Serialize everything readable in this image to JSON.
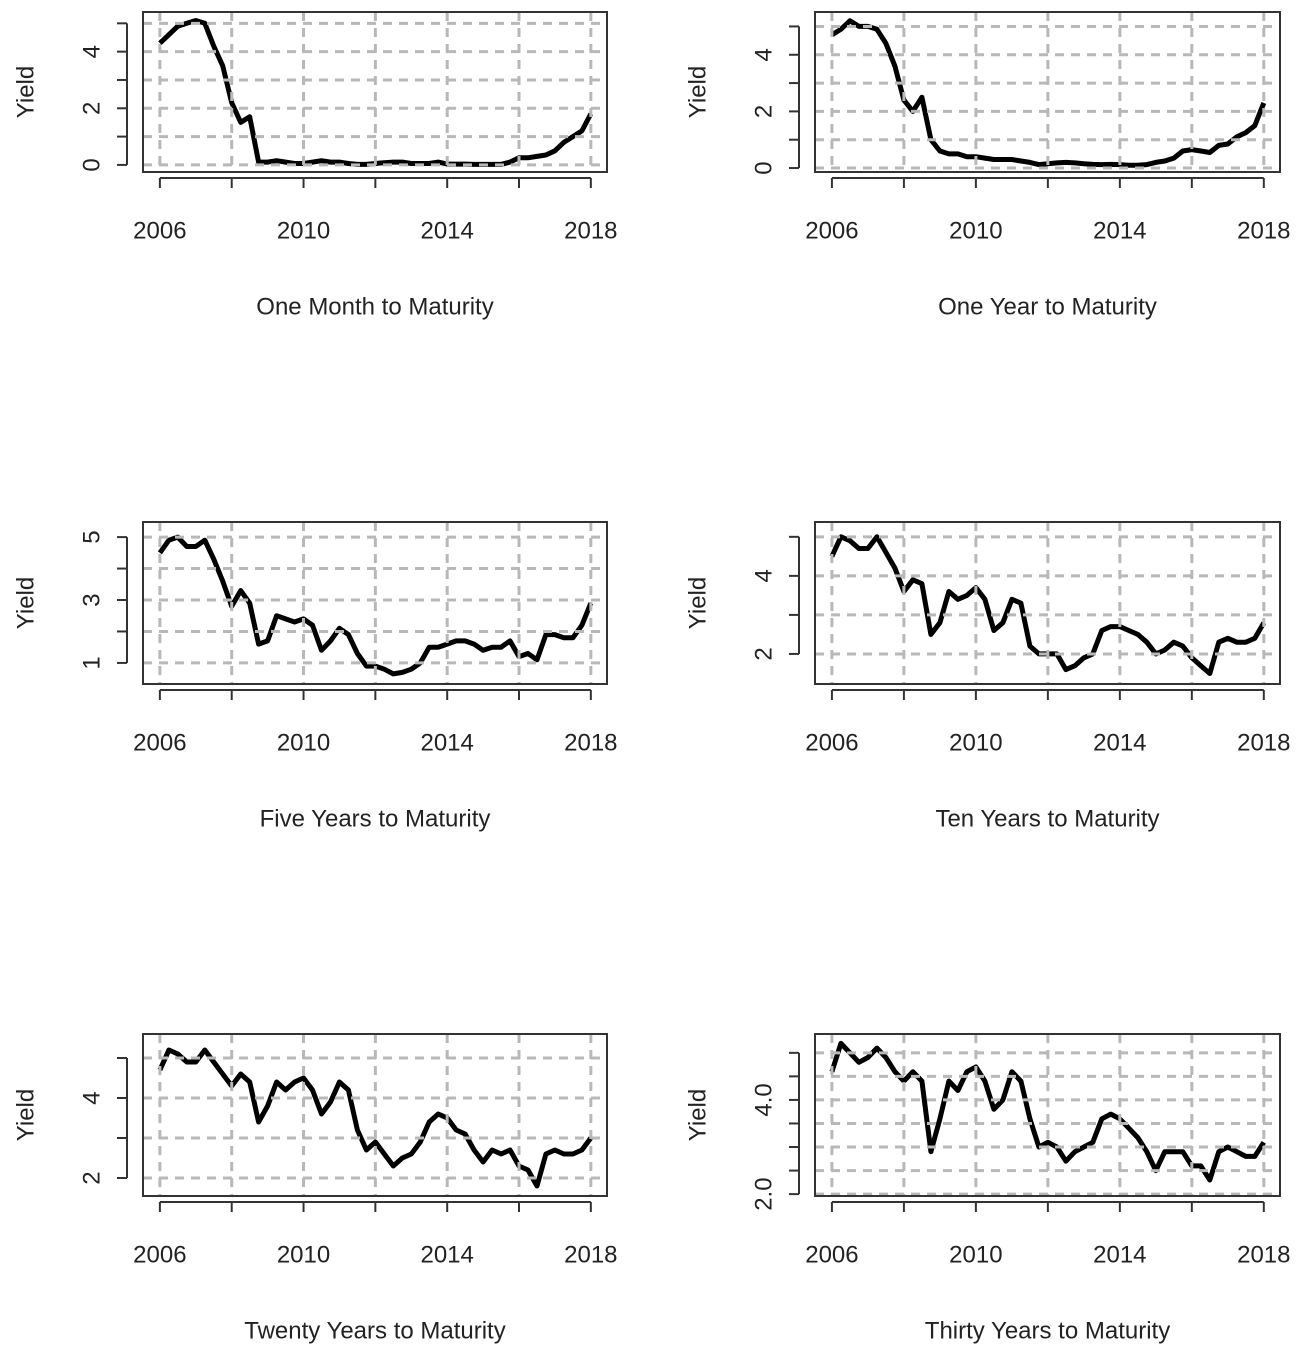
{
  "chart_data": [
    {
      "type": "line",
      "xlabel": "One Month to Maturity",
      "ylabel": "Yield",
      "color": "#000000",
      "grid": true,
      "x": [
        2006,
        2006.25,
        2006.5,
        2006.75,
        2007,
        2007.25,
        2007.5,
        2007.75,
        2008,
        2008.25,
        2008.5,
        2008.75,
        2009,
        2009.25,
        2009.5,
        2009.75,
        2010,
        2010.25,
        2010.5,
        2010.75,
        2011,
        2011.25,
        2011.5,
        2011.75,
        2012,
        2012.25,
        2012.5,
        2012.75,
        2013,
        2013.25,
        2013.5,
        2013.75,
        2014,
        2014.25,
        2014.5,
        2014.75,
        2015,
        2015.25,
        2015.5,
        2015.75,
        2016,
        2016.25,
        2016.5,
        2016.75,
        2017,
        2017.25,
        2017.5,
        2017.75,
        2018
      ],
      "values": [
        4.3,
        4.6,
        4.9,
        5.0,
        5.1,
        5.0,
        4.2,
        3.5,
        2.2,
        1.5,
        1.7,
        0.1,
        0.1,
        0.15,
        0.1,
        0.05,
        0.05,
        0.1,
        0.15,
        0.1,
        0.1,
        0.05,
        0.02,
        0.02,
        0.05,
        0.08,
        0.1,
        0.1,
        0.05,
        0.05,
        0.05,
        0.1,
        0.03,
        0.03,
        0.03,
        0.02,
        0.02,
        0.02,
        0.02,
        0.1,
        0.25,
        0.25,
        0.3,
        0.35,
        0.5,
        0.8,
        1.0,
        1.2,
        1.8
      ],
      "xlim": [
        2005.53,
        2018.45
      ],
      "xticks": [
        2006,
        2010,
        2014,
        2018
      ],
      "xticks_minor": [
        2008,
        2012,
        2016
      ],
      "ylim": [
        -0.25,
        5.4
      ],
      "yticks": [
        0,
        2,
        4
      ],
      "yticks_minor": [
        1,
        3,
        5
      ]
    },
    {
      "type": "line",
      "xlabel": "One Year to Maturity",
      "ylabel": "Yield",
      "color": "#000000",
      "grid": true,
      "x": [
        2006,
        2006.25,
        2006.5,
        2006.75,
        2007,
        2007.25,
        2007.5,
        2007.75,
        2008,
        2008.25,
        2008.5,
        2008.75,
        2009,
        2009.25,
        2009.5,
        2009.75,
        2010,
        2010.25,
        2010.5,
        2010.75,
        2011,
        2011.25,
        2011.5,
        2011.75,
        2012,
        2012.25,
        2012.5,
        2012.75,
        2013,
        2013.25,
        2013.5,
        2013.75,
        2014,
        2014.25,
        2014.5,
        2014.75,
        2015,
        2015.25,
        2015.5,
        2015.75,
        2016,
        2016.25,
        2016.5,
        2016.75,
        2017,
        2017.25,
        2017.5,
        2017.75,
        2018
      ],
      "values": [
        4.7,
        4.9,
        5.2,
        5.0,
        5.0,
        4.9,
        4.4,
        3.6,
        2.4,
        2.0,
        2.5,
        1.0,
        0.6,
        0.5,
        0.5,
        0.4,
        0.4,
        0.35,
        0.3,
        0.3,
        0.3,
        0.25,
        0.2,
        0.12,
        0.15,
        0.18,
        0.2,
        0.18,
        0.15,
        0.13,
        0.12,
        0.13,
        0.12,
        0.1,
        0.1,
        0.12,
        0.2,
        0.25,
        0.35,
        0.6,
        0.65,
        0.6,
        0.55,
        0.8,
        0.85,
        1.1,
        1.25,
        1.5,
        2.3
      ],
      "xlim": [
        2005.53,
        2018.45
      ],
      "xticks": [
        2006,
        2010,
        2014,
        2018
      ],
      "xticks_minor": [
        2008,
        2012,
        2016
      ],
      "ylim": [
        -0.14,
        5.51
      ],
      "yticks": [
        0,
        2,
        4
      ],
      "yticks_minor": [
        1,
        3,
        5
      ]
    },
    {
      "type": "line",
      "xlabel": "Five Years to Maturity",
      "ylabel": "Yield",
      "color": "#000000",
      "grid": true,
      "x": [
        2006,
        2006.25,
        2006.5,
        2006.75,
        2007,
        2007.25,
        2007.5,
        2007.75,
        2008,
        2008.25,
        2008.5,
        2008.75,
        2009,
        2009.25,
        2009.5,
        2009.75,
        2010,
        2010.25,
        2010.5,
        2010.75,
        2011,
        2011.25,
        2011.5,
        2011.75,
        2012,
        2012.25,
        2012.5,
        2012.75,
        2013,
        2013.25,
        2013.5,
        2013.75,
        2014,
        2014.25,
        2014.5,
        2014.75,
        2015,
        2015.25,
        2015.5,
        2015.75,
        2016,
        2016.25,
        2016.5,
        2016.75,
        2017,
        2017.25,
        2017.5,
        2017.75,
        2018
      ],
      "values": [
        4.5,
        4.9,
        5.0,
        4.7,
        4.7,
        4.9,
        4.3,
        3.6,
        2.8,
        3.3,
        2.9,
        1.6,
        1.7,
        2.5,
        2.4,
        2.3,
        2.4,
        2.2,
        1.4,
        1.7,
        2.1,
        1.9,
        1.3,
        0.9,
        0.9,
        0.8,
        0.65,
        0.7,
        0.8,
        1.0,
        1.5,
        1.5,
        1.6,
        1.7,
        1.7,
        1.6,
        1.4,
        1.5,
        1.5,
        1.7,
        1.2,
        1.3,
        1.1,
        1.9,
        1.9,
        1.8,
        1.8,
        2.2,
        2.9
      ],
      "xlim": [
        2005.53,
        2018.45
      ],
      "xticks": [
        2006,
        2010,
        2014,
        2018
      ],
      "xticks_minor": [
        2008,
        2012,
        2016
      ],
      "ylim": [
        0.33,
        5.48
      ],
      "yticks": [
        1,
        3,
        5
      ],
      "yticks_minor": [
        2,
        4
      ]
    },
    {
      "type": "line",
      "xlabel": "Ten Years to Maturity",
      "ylabel": "Yield",
      "color": "#000000",
      "grid": true,
      "x": [
        2006,
        2006.25,
        2006.5,
        2006.75,
        2007,
        2007.25,
        2007.5,
        2007.75,
        2008,
        2008.25,
        2008.5,
        2008.75,
        2009,
        2009.25,
        2009.5,
        2009.75,
        2010,
        2010.25,
        2010.5,
        2010.75,
        2011,
        2011.25,
        2011.5,
        2011.75,
        2012,
        2012.25,
        2012.5,
        2012.75,
        2013,
        2013.25,
        2013.5,
        2013.75,
        2014,
        2014.25,
        2014.5,
        2014.75,
        2015,
        2015.25,
        2015.5,
        2015.75,
        2016,
        2016.25,
        2016.5,
        2016.75,
        2017,
        2017.25,
        2017.5,
        2017.75,
        2018
      ],
      "values": [
        4.5,
        5.0,
        4.9,
        4.7,
        4.7,
        5.0,
        4.6,
        4.2,
        3.6,
        3.9,
        3.8,
        2.5,
        2.8,
        3.6,
        3.4,
        3.5,
        3.7,
        3.4,
        2.6,
        2.8,
        3.4,
        3.3,
        2.2,
        2.0,
        2.0,
        2.0,
        1.6,
        1.7,
        1.9,
        2.0,
        2.6,
        2.7,
        2.7,
        2.6,
        2.5,
        2.3,
        2.0,
        2.1,
        2.3,
        2.2,
        1.9,
        1.7,
        1.5,
        2.3,
        2.4,
        2.3,
        2.3,
        2.4,
        2.8
      ],
      "xlim": [
        2005.53,
        2018.45
      ],
      "xticks": [
        2006,
        2010,
        2014,
        2018
      ],
      "xticks_minor": [
        2008,
        2012,
        2016
      ],
      "ylim": [
        1.23,
        5.38
      ],
      "yticks": [
        2,
        4
      ],
      "yticks_minor": [
        3,
        5
      ]
    },
    {
      "type": "line",
      "xlabel": "Twenty Years to Maturity",
      "ylabel": "Yield",
      "color": "#000000",
      "grid": true,
      "x": [
        2006,
        2006.25,
        2006.5,
        2006.75,
        2007,
        2007.25,
        2007.5,
        2007.75,
        2008,
        2008.25,
        2008.5,
        2008.75,
        2009,
        2009.25,
        2009.5,
        2009.75,
        2010,
        2010.25,
        2010.5,
        2010.75,
        2011,
        2011.25,
        2011.5,
        2011.75,
        2012,
        2012.25,
        2012.5,
        2012.75,
        2013,
        2013.25,
        2013.5,
        2013.75,
        2014,
        2014.25,
        2014.5,
        2014.75,
        2015,
        2015.25,
        2015.5,
        2015.75,
        2016,
        2016.25,
        2016.5,
        2016.75,
        2017,
        2017.25,
        2017.5,
        2017.75,
        2018
      ],
      "values": [
        4.7,
        5.2,
        5.1,
        4.9,
        4.9,
        5.2,
        4.9,
        4.6,
        4.3,
        4.6,
        4.4,
        3.4,
        3.8,
        4.4,
        4.2,
        4.4,
        4.5,
        4.2,
        3.6,
        3.9,
        4.4,
        4.2,
        3.2,
        2.7,
        2.9,
        2.6,
        2.3,
        2.5,
        2.6,
        2.9,
        3.4,
        3.6,
        3.5,
        3.2,
        3.1,
        2.7,
        2.4,
        2.7,
        2.6,
        2.7,
        2.3,
        2.2,
        1.8,
        2.6,
        2.7,
        2.6,
        2.6,
        2.7,
        3.0
      ],
      "xlim": [
        2005.53,
        2018.45
      ],
      "xticks": [
        2006,
        2010,
        2014,
        2018
      ],
      "xticks_minor": [
        2008,
        2012,
        2016
      ],
      "ylim": [
        1.55,
        5.6
      ],
      "yticks": [
        2,
        4
      ],
      "yticks_minor": [
        3,
        5
      ]
    },
    {
      "type": "line",
      "xlabel": "Thirty Years to Maturity",
      "ylabel": "Yield",
      "color": "#000000",
      "grid": true,
      "x": [
        2006,
        2006.25,
        2006.5,
        2006.75,
        2007,
        2007.25,
        2007.5,
        2007.75,
        2008,
        2008.25,
        2008.5,
        2008.75,
        2009,
        2009.25,
        2009.5,
        2009.75,
        2010,
        2010.25,
        2010.5,
        2010.75,
        2011,
        2011.25,
        2011.5,
        2011.75,
        2012,
        2012.25,
        2012.5,
        2012.75,
        2013,
        2013.25,
        2013.5,
        2013.75,
        2014,
        2014.25,
        2014.5,
        2014.75,
        2015,
        2015.25,
        2015.5,
        2015.75,
        2016,
        2016.25,
        2016.5,
        2016.75,
        2017,
        2017.25,
        2017.5,
        2017.75,
        2018
      ],
      "values": [
        4.6,
        5.2,
        5.0,
        4.8,
        4.9,
        5.1,
        4.9,
        4.6,
        4.4,
        4.6,
        4.4,
        2.9,
        3.6,
        4.4,
        4.2,
        4.6,
        4.7,
        4.4,
        3.8,
        4.0,
        4.6,
        4.4,
        3.6,
        3.0,
        3.1,
        3.0,
        2.7,
        2.9,
        3.0,
        3.1,
        3.6,
        3.7,
        3.6,
        3.4,
        3.2,
        2.9,
        2.5,
        2.9,
        2.9,
        2.9,
        2.6,
        2.6,
        2.3,
        2.9,
        3.0,
        2.9,
        2.8,
        2.8,
        3.1
      ],
      "xlim": [
        2005.53,
        2018.45
      ],
      "xticks": [
        2006,
        2010,
        2014,
        2018
      ],
      "xticks_minor": [
        2008,
        2012,
        2016
      ],
      "ylim": [
        1.96,
        5.4
      ],
      "yticks": [
        {
          "value": 2,
          "label": "2.0"
        },
        {
          "value": 4,
          "label": "4.0"
        }
      ],
      "yticks_minor": [
        2.5,
        3,
        3.5,
        4.5,
        5
      ]
    }
  ]
}
